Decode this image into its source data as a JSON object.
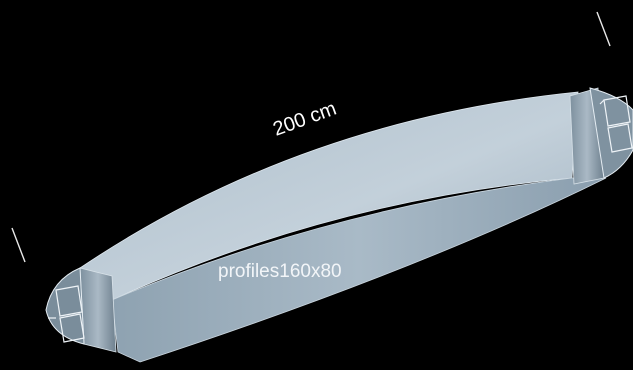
{
  "dimension_label": "200 cm",
  "profile_label": "profiles160x80",
  "colors": {
    "background": "#000000",
    "panel_light": "#b9c7d2",
    "panel_mid": "#93a6b4",
    "panel_dark": "#6f8290",
    "edge": "#dfe8ef",
    "text": "#ffffff"
  }
}
